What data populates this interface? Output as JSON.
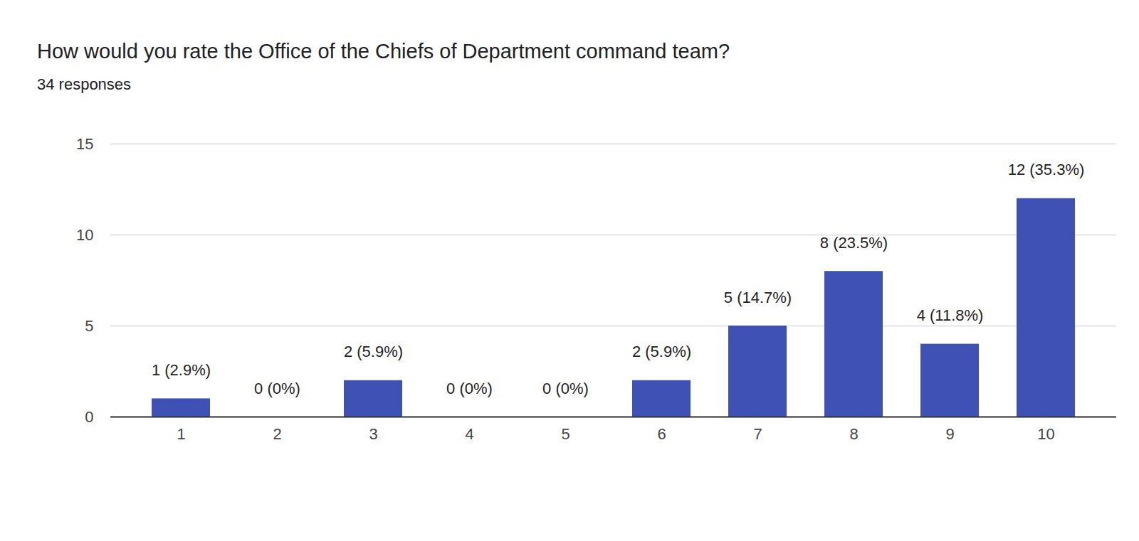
{
  "chart_data": {
    "type": "bar",
    "title": "How would you rate the Office of the Chiefs of Department command team?",
    "subtitle": "34 responses",
    "categories": [
      "1",
      "2",
      "3",
      "4",
      "5",
      "6",
      "7",
      "8",
      "9",
      "10"
    ],
    "values": [
      1,
      0,
      2,
      0,
      0,
      2,
      5,
      8,
      4,
      12
    ],
    "value_labels": [
      "1 (2.9%)",
      "0 (0%)",
      "2 (5.9%)",
      "0 (0%)",
      "0 (0%)",
      "2 (5.9%)",
      "5 (14.7%)",
      "8 (23.5%)",
      "4 (11.8%)",
      "12 (35.3%)"
    ],
    "color": "#3f51b5",
    "ylim": [
      0,
      15
    ],
    "yticks": [
      0,
      5,
      10,
      15
    ],
    "grid": true,
    "data_labels": true
  }
}
